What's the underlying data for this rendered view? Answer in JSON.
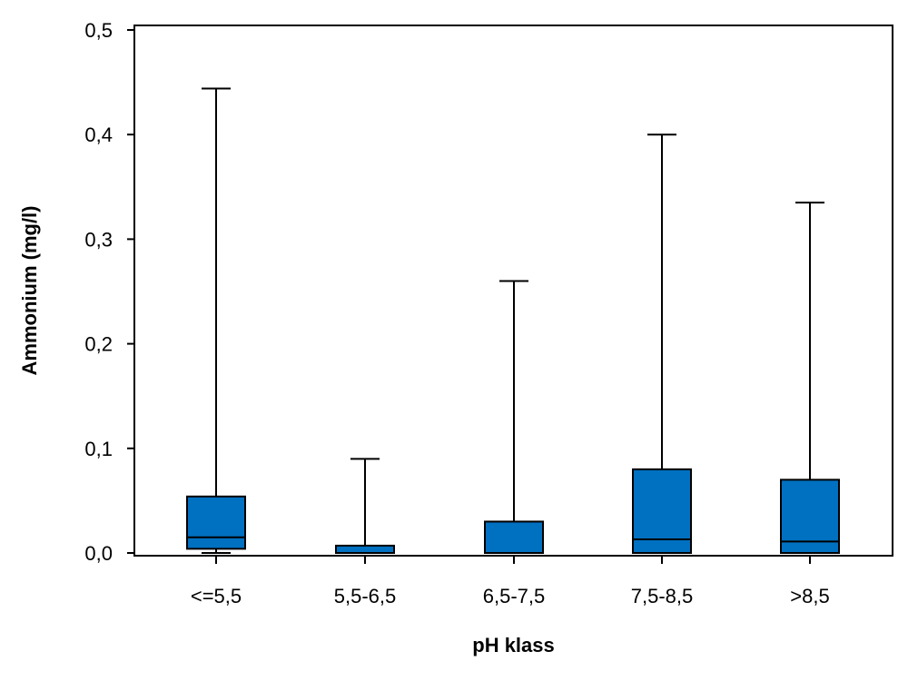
{
  "chart_data": {
    "type": "boxplot",
    "title": "",
    "xlabel": "pH klass",
    "ylabel": "Ammonium (mg/l)",
    "ylim": [
      0,
      0.5
    ],
    "yticks": [
      0.0,
      0.1,
      0.2,
      0.3,
      0.4,
      0.5
    ],
    "ytick_labels": [
      "0,0",
      "0,1",
      "0,2",
      "0,3",
      "0,4",
      "0,5"
    ],
    "grid": false,
    "legend": "none",
    "box_color": "#0070C0",
    "line_color": "#000000",
    "categories": [
      "<=5,5",
      "5,5-6,5",
      "6,5-7,5",
      "7,5-8,5",
      ">8,5"
    ],
    "boxes": [
      {
        "category": "<=5,5",
        "whisker_low": 0.0,
        "q1": 0.004,
        "median": 0.015,
        "q3": 0.054,
        "whisker_high": 0.444
      },
      {
        "category": "5,5-6,5",
        "whisker_low": 0.0,
        "q1": 0.0,
        "median": 0.0,
        "q3": 0.007,
        "whisker_high": 0.09
      },
      {
        "category": "6,5-7,5",
        "whisker_low": 0.0,
        "q1": 0.0,
        "median": 0.0,
        "q3": 0.03,
        "whisker_high": 0.26
      },
      {
        "category": "7,5-8,5",
        "whisker_low": 0.0,
        "q1": 0.0,
        "median": 0.013,
        "q3": 0.08,
        "whisker_high": 0.4
      },
      {
        "category": ">8,5",
        "whisker_low": 0.0,
        "q1": 0.0,
        "median": 0.011,
        "q3": 0.07,
        "whisker_high": 0.335
      }
    ]
  }
}
